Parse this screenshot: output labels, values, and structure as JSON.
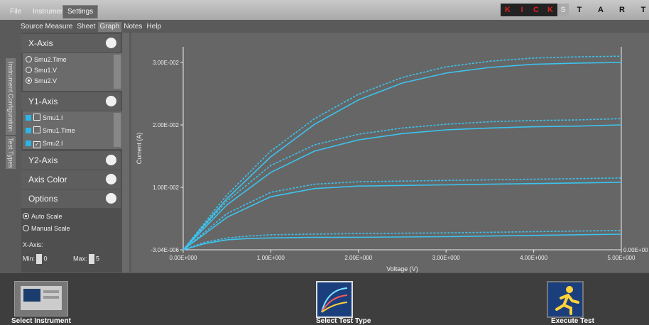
{
  "titlebar": {
    "tabs": [
      "File",
      "Instruments",
      "Settings"
    ],
    "logo_letters": [
      "K",
      "I",
      "C",
      "K",
      "S",
      "T",
      "A",
      "R",
      "T"
    ]
  },
  "menu": [
    "Source Measure",
    "Sheet",
    "Graph",
    "Notes",
    "Help"
  ],
  "side_tabs": [
    "Instrument Configuration",
    "Test Types"
  ],
  "panel": {
    "x_axis": {
      "label": "X-Axis",
      "items": [
        "Smu2.Time",
        "Smu1.V",
        "Smu2.V"
      ],
      "selected": "Smu2.V"
    },
    "y1_axis": {
      "label": "Y1-Axis",
      "items": [
        "Smu1.I",
        "Smu1.Time",
        "Smu2.I"
      ],
      "checked": [
        "Smu2.I"
      ],
      "swatch_color": "#2bb6e5"
    },
    "y2_axis_label": "Y2-Axis",
    "axis_color_label": "Axis Color",
    "options_label": "Options",
    "auto_scale_label": "Auto Scale",
    "manual_scale_label": "Manual Scale",
    "scale_mode": "Auto Scale",
    "x_axis_range_label": "X-Axis:",
    "min_label": "Min:",
    "min_value": "0",
    "max_label": "Max:",
    "max_value": "5"
  },
  "chart_data": {
    "type": "line",
    "xlabel": "Voltage (V)",
    "ylabel": "Current (A)",
    "xlim": [
      0,
      5
    ],
    "ylim": [
      -3.04e-06,
      0.0325
    ],
    "x_ticks": [
      "0.00E+000",
      "1.00E+000",
      "2.00E+000",
      "3.00E+000",
      "4.00E+000",
      "5.00E+000"
    ],
    "y_ticks": [
      "-3.04E-006",
      "1.00E-002",
      "2.00E-002",
      "3.00E-002"
    ],
    "y2_tick": "0.00E+00",
    "line_color": "#3cc3ee",
    "series": [
      {
        "style": "dashed",
        "x": [
          0,
          0.5,
          1,
          1.5,
          2,
          2.5,
          3,
          3.5,
          4,
          4.5,
          5
        ],
        "y": [
          0,
          0.0088,
          0.0158,
          0.021,
          0.0249,
          0.0276,
          0.0293,
          0.0302,
          0.0307,
          0.0309,
          0.031
        ]
      },
      {
        "style": "solid",
        "x": [
          0,
          0.5,
          1,
          1.5,
          2,
          2.5,
          3,
          3.5,
          4,
          4.5,
          5
        ],
        "y": [
          0,
          0.0082,
          0.0149,
          0.0201,
          0.024,
          0.0267,
          0.0283,
          0.0292,
          0.0297,
          0.0299,
          0.03
        ]
      },
      {
        "style": "dashed",
        "x": [
          0,
          0.5,
          1,
          1.5,
          2,
          2.5,
          3,
          3.5,
          4,
          4.5,
          5
        ],
        "y": [
          0,
          0.0078,
          0.0135,
          0.0168,
          0.0185,
          0.0195,
          0.0201,
          0.0205,
          0.0207,
          0.0208,
          0.021
        ]
      },
      {
        "style": "solid",
        "x": [
          0,
          0.5,
          1,
          1.5,
          2,
          2.5,
          3,
          3.5,
          4,
          4.5,
          5
        ],
        "y": [
          0,
          0.0072,
          0.0124,
          0.0158,
          0.0176,
          0.0186,
          0.0192,
          0.0195,
          0.0197,
          0.0198,
          0.02
        ]
      },
      {
        "style": "dashed",
        "x": [
          0,
          0.5,
          1,
          1.5,
          2,
          2.5,
          3,
          3.5,
          4,
          4.5,
          5
        ],
        "y": [
          0,
          0.0058,
          0.0092,
          0.0105,
          0.0109,
          0.011,
          0.0111,
          0.0112,
          0.0113,
          0.0114,
          0.0115
        ]
      },
      {
        "style": "solid",
        "x": [
          0,
          0.5,
          1,
          1.5,
          2,
          2.5,
          3,
          3.5,
          4,
          4.5,
          5
        ],
        "y": [
          0,
          0.0052,
          0.0085,
          0.0098,
          0.0102,
          0.0103,
          0.0104,
          0.0105,
          0.0106,
          0.0107,
          0.0108
        ]
      },
      {
        "style": "dashed",
        "x": [
          0,
          0.25,
          0.5,
          0.75,
          1,
          1.5,
          2,
          3,
          4,
          5
        ],
        "y": [
          0,
          0.0012,
          0.0019,
          0.0022,
          0.0024,
          0.0025,
          0.0026,
          0.0027,
          0.0029,
          0.0031
        ]
      },
      {
        "style": "solid",
        "x": [
          0,
          0.25,
          0.5,
          0.75,
          1,
          1.5,
          2,
          3,
          4,
          5
        ],
        "y": [
          0,
          0.001,
          0.0016,
          0.0018,
          0.0019,
          0.002,
          0.002,
          0.0021,
          0.0023,
          0.0025
        ]
      }
    ]
  },
  "bottom_bar": {
    "buttons": [
      "Select Instrument",
      "Select Test Type",
      "Execute Test"
    ]
  }
}
